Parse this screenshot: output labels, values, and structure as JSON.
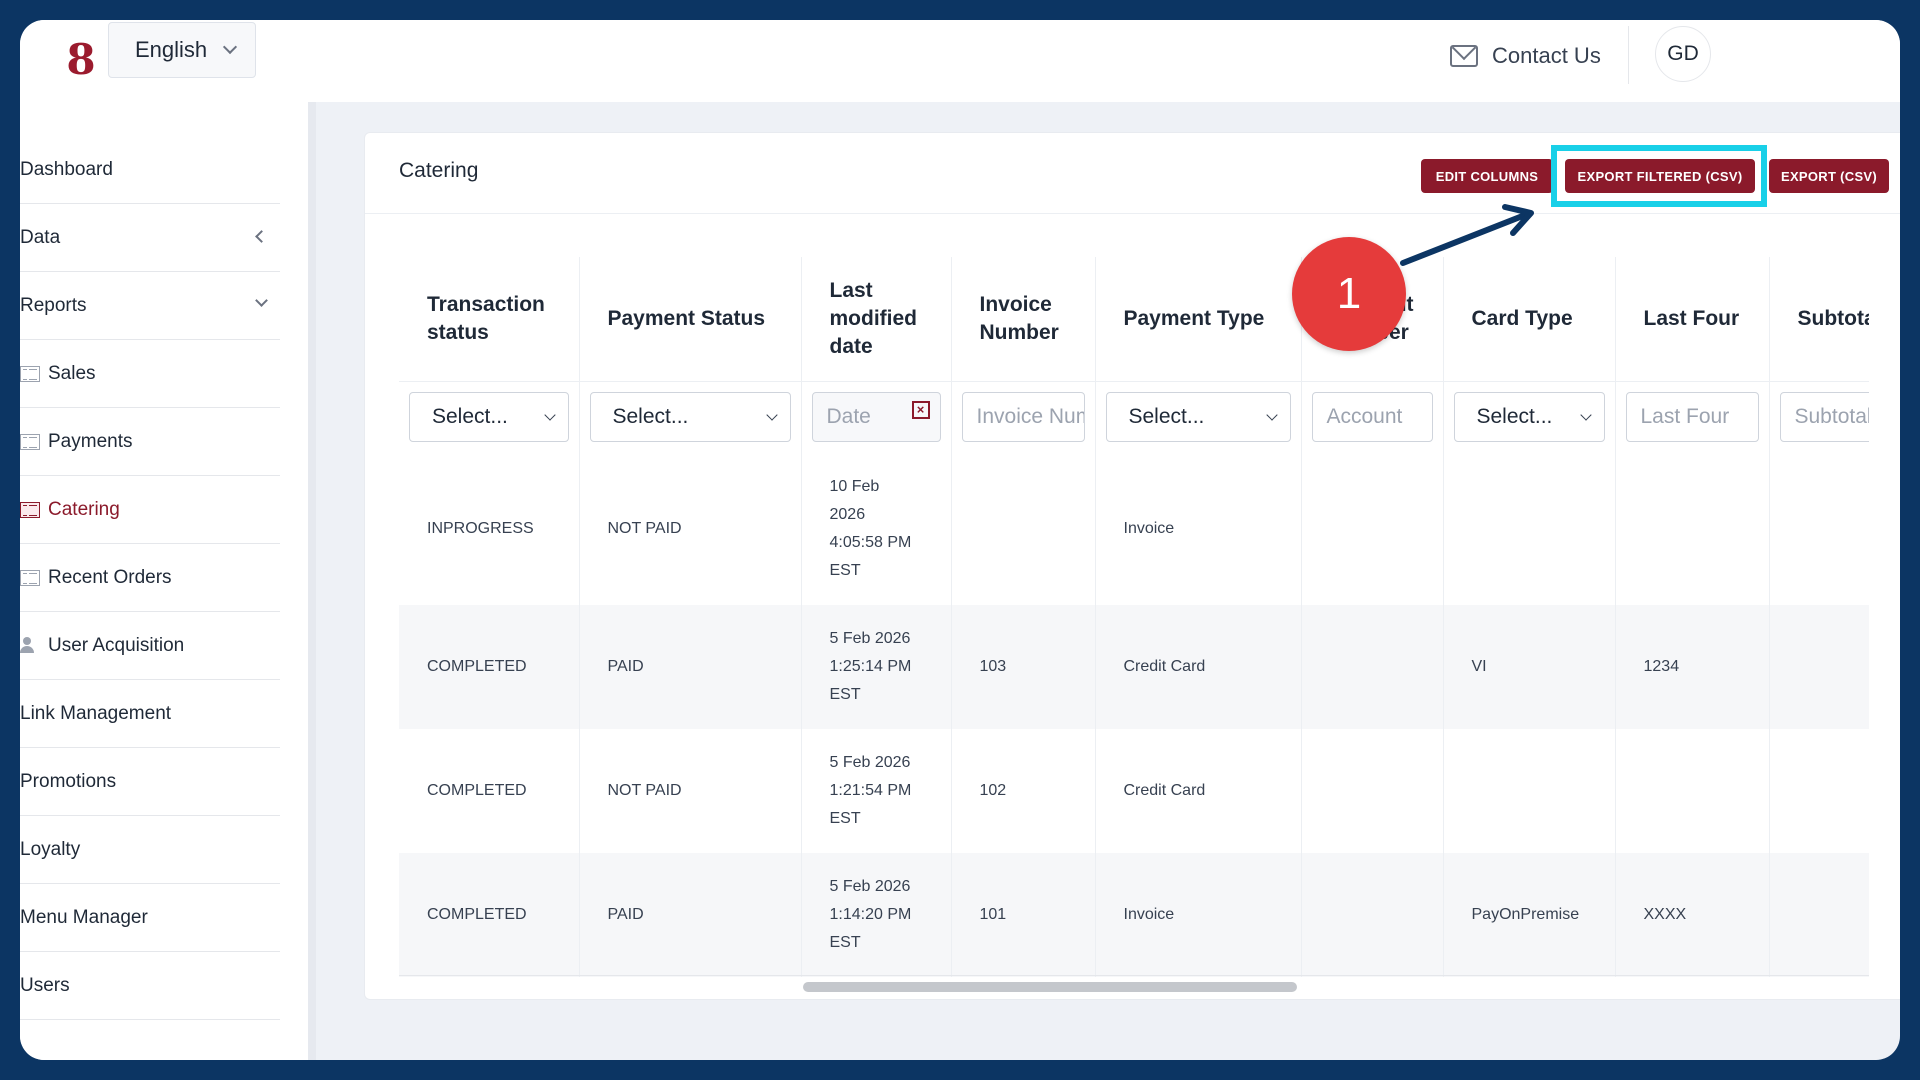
{
  "header": {
    "logo_glyph": "8",
    "language": "English",
    "contact_label": "Contact Us",
    "avatar_initials": "GD"
  },
  "sidebar": {
    "items": [
      {
        "label": "Dashboard"
      },
      {
        "label": "Data"
      },
      {
        "label": "Reports"
      },
      {
        "label": "Sales"
      },
      {
        "label": "Payments"
      },
      {
        "label": "Catering"
      },
      {
        "label": "Recent Orders"
      },
      {
        "label": "User Acquisition"
      },
      {
        "label": "Link Management"
      },
      {
        "label": "Promotions"
      },
      {
        "label": "Loyalty"
      },
      {
        "label": "Menu Manager"
      },
      {
        "label": "Users"
      }
    ],
    "active_item": "Catering"
  },
  "page": {
    "title": "Catering",
    "buttons": {
      "edit_columns": "EDIT COLUMNS",
      "export_filtered": "EXPORT FILTERED (CSV)",
      "export": "EXPORT (CSV)"
    },
    "step_number": "1"
  },
  "table": {
    "columns": [
      "Transaction status",
      "Payment Status",
      "Last modified date",
      "Invoice Number",
      "Payment Type",
      "Account Number",
      "Card Type",
      "Last Four",
      "Subtotal"
    ],
    "filters": {
      "transaction_status": "Select...",
      "payment_status": "Select...",
      "date_placeholder": "Date",
      "invoice_placeholder": "Invoice Number",
      "payment_type": "Select...",
      "account_placeholder": "Account",
      "card_type": "Select...",
      "last_four_placeholder": "Last Four",
      "subtotal_placeholder": "Subtotal"
    },
    "rows": [
      {
        "transaction_status": "INPROGRESS",
        "payment_status": "NOT PAID",
        "date_line1": "10 Feb",
        "date_line2": "2026",
        "date_line3": "4:05:58 PM",
        "date_line4": "EST",
        "invoice": "",
        "payment_type": "Invoice",
        "account": "",
        "card_type": "",
        "last_four": "",
        "subtotal": ""
      },
      {
        "transaction_status": "COMPLETED",
        "payment_status": "PAID",
        "date_line1": "5 Feb 2026",
        "date_line2": "1:25:14 PM",
        "date_line3": "EST",
        "invoice": "103",
        "payment_type": "Credit Card",
        "account": "",
        "card_type": "VI",
        "last_four": "1234",
        "subtotal": ""
      },
      {
        "transaction_status": "COMPLETED",
        "payment_status": "NOT PAID",
        "date_line1": "5 Feb 2026",
        "date_line2": "1:21:54 PM",
        "date_line3": "EST",
        "invoice": "102",
        "payment_type": "Credit Card",
        "account": "",
        "card_type": "",
        "last_four": "",
        "subtotal": ""
      },
      {
        "transaction_status": "COMPLETED",
        "payment_status": "PAID",
        "date_line1": "5 Feb 2026",
        "date_line2": "1:14:20 PM",
        "date_line3": "EST",
        "invoice": "101",
        "payment_type": "Invoice",
        "account": "",
        "card_type": "PayOnPremise",
        "last_four": "XXXX",
        "subtotal": ""
      }
    ]
  },
  "colors": {
    "brand": "#8b1a2b",
    "highlight": "#19d0e8",
    "badge": "#e53b3b",
    "frame": "#0c3563"
  }
}
